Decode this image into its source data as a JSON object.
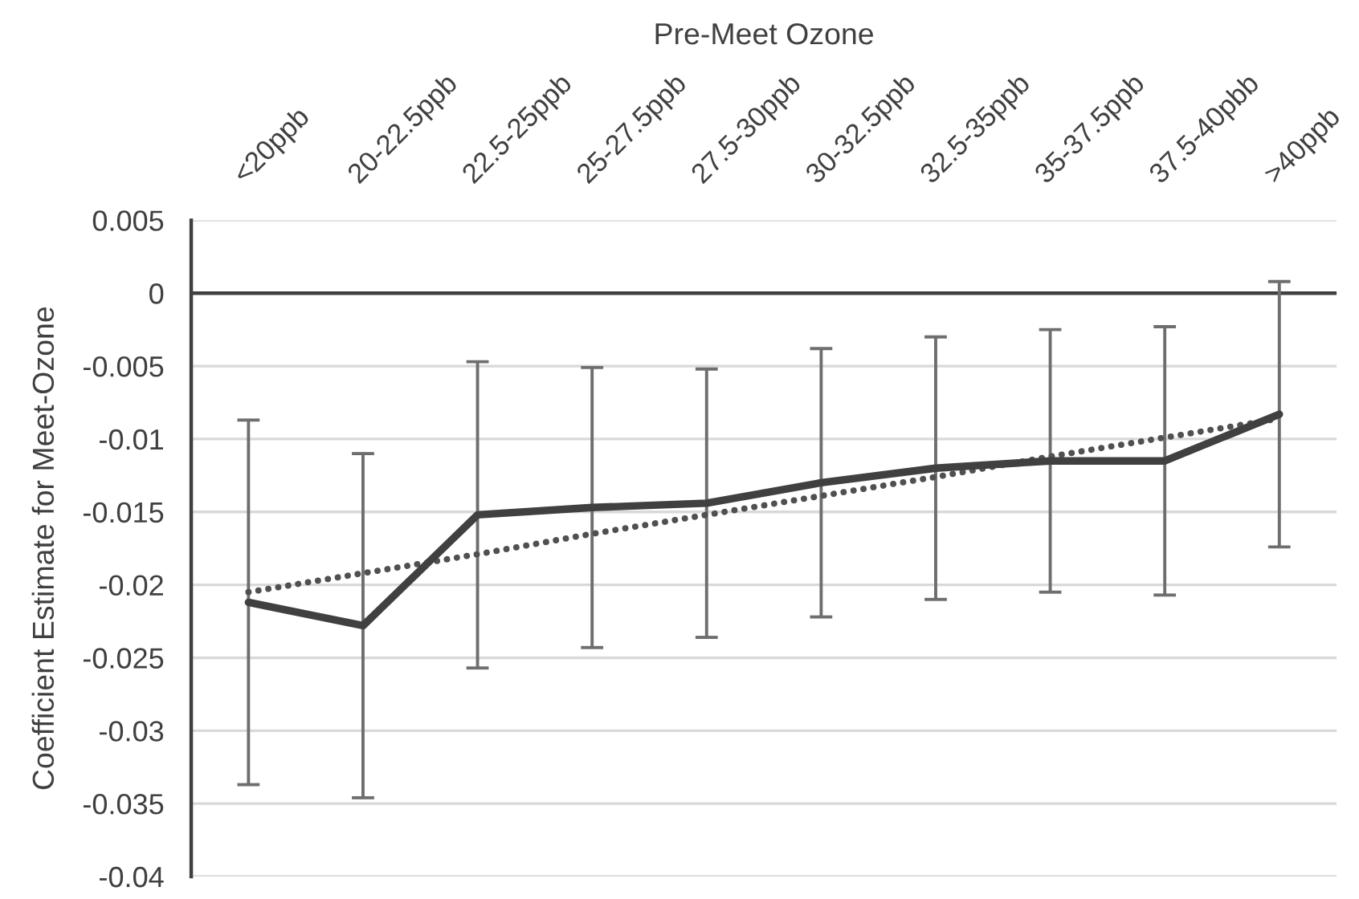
{
  "chart_data": {
    "type": "line",
    "xlabel": "Pre-Meet Ozone",
    "ylabel": "Coefficient Estimate for Meet-Ozone",
    "categories": [
      "<20ppb",
      "20-22.5ppb",
      "22.5-25ppb",
      "25-27.5ppb",
      "27.5-30ppb",
      "30-32.5ppb",
      "32.5-35ppb",
      "35-37.5ppb",
      "37.5-40pbb",
      ">40ppb"
    ],
    "series": [
      {
        "color": "#404040",
        "values": [
          -0.0212,
          -0.0228,
          -0.0152,
          -0.0147,
          -0.0144,
          -0.013,
          -0.012,
          -0.0115,
          -0.0115,
          -0.0083
        ],
        "errors": [
          0.0125,
          0.0118,
          0.0105,
          0.0096,
          0.0092,
          0.0092,
          0.009,
          0.009,
          0.0092,
          0.0091
        ]
      },
      {
        "type": "line",
        "color": "#505050",
        "line_style": "dotted",
        "values": [
          -0.0205,
          -0.0192,
          -0.0179,
          -0.0165,
          -0.0152,
          -0.0139,
          -0.0126,
          -0.0112,
          -0.0099,
          -0.0086
        ]
      }
    ],
    "ylim": [
      -0.04,
      0.005
    ],
    "yticks": [
      0.005,
      0,
      -0.005,
      -0.01,
      -0.015,
      -0.02,
      -0.025,
      -0.03,
      -0.035,
      -0.04
    ],
    "grid": "y",
    "ref_lines": [
      {
        "axis": "y",
        "value": 0,
        "color": "#404040"
      }
    ]
  }
}
